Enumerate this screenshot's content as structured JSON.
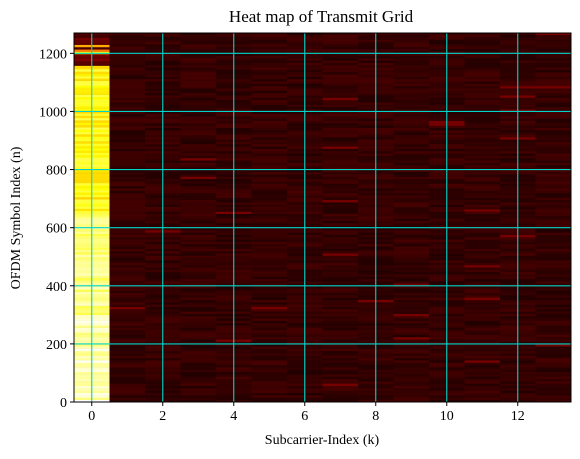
{
  "chart_data": {
    "type": "heatmap",
    "title": "Heat map of Transmit Grid",
    "xlabel": "Subcarrier-Index (k)",
    "ylabel": "OFDM Symbol Index (n)",
    "xlim": [
      -0.5,
      13.5
    ],
    "ylim": [
      0,
      1270
    ],
    "x_ticks": [
      0,
      2,
      4,
      6,
      8,
      10,
      12
    ],
    "y_ticks": [
      0,
      200,
      400,
      600,
      800,
      1000,
      1200
    ],
    "grid": true,
    "colormap": "hot",
    "subcarriers": [
      0,
      1,
      2,
      3,
      4,
      5,
      6,
      7,
      8,
      9,
      10,
      11,
      12,
      13
    ],
    "symbol_count": 1270,
    "column_levels": [
      {
        "k": 0,
        "n_range": [
          0,
          300
        ],
        "level": 1.0
      },
      {
        "k": 0,
        "n_range": [
          300,
          650
        ],
        "level": 0.95
      },
      {
        "k": 0,
        "n_range": [
          650,
          1150
        ],
        "level": 0.82
      },
      {
        "k": 0,
        "n_range": [
          1150,
          1270
        ],
        "level": 0.1
      },
      {
        "k": 1,
        "n_range": [
          0,
          1270
        ],
        "level": 0.06
      },
      {
        "k": 2,
        "n_range": [
          0,
          1270
        ],
        "level": 0.06
      },
      {
        "k": 3,
        "n_range": [
          0,
          1270
        ],
        "level": 0.06
      },
      {
        "k": 4,
        "n_range": [
          0,
          1270
        ],
        "level": 0.06
      },
      {
        "k": 5,
        "n_range": [
          0,
          1270
        ],
        "level": 0.06
      },
      {
        "k": 6,
        "n_range": [
          0,
          1270
        ],
        "level": 0.06
      },
      {
        "k": 7,
        "n_range": [
          0,
          1270
        ],
        "level": 0.06
      },
      {
        "k": 8,
        "n_range": [
          0,
          1270
        ],
        "level": 0.06
      },
      {
        "k": 9,
        "n_range": [
          0,
          1270
        ],
        "level": 0.06
      },
      {
        "k": 10,
        "n_range": [
          0,
          1270
        ],
        "level": 0.06
      },
      {
        "k": 11,
        "n_range": [
          0,
          1270
        ],
        "level": 0.06
      },
      {
        "k": 12,
        "n_range": [
          0,
          1270
        ],
        "level": 0.06
      },
      {
        "k": 13,
        "n_range": [
          0,
          1270
        ],
        "level": 0.06
      }
    ],
    "colors": {
      "grid": "#00d4c8",
      "background": "#120000"
    }
  }
}
